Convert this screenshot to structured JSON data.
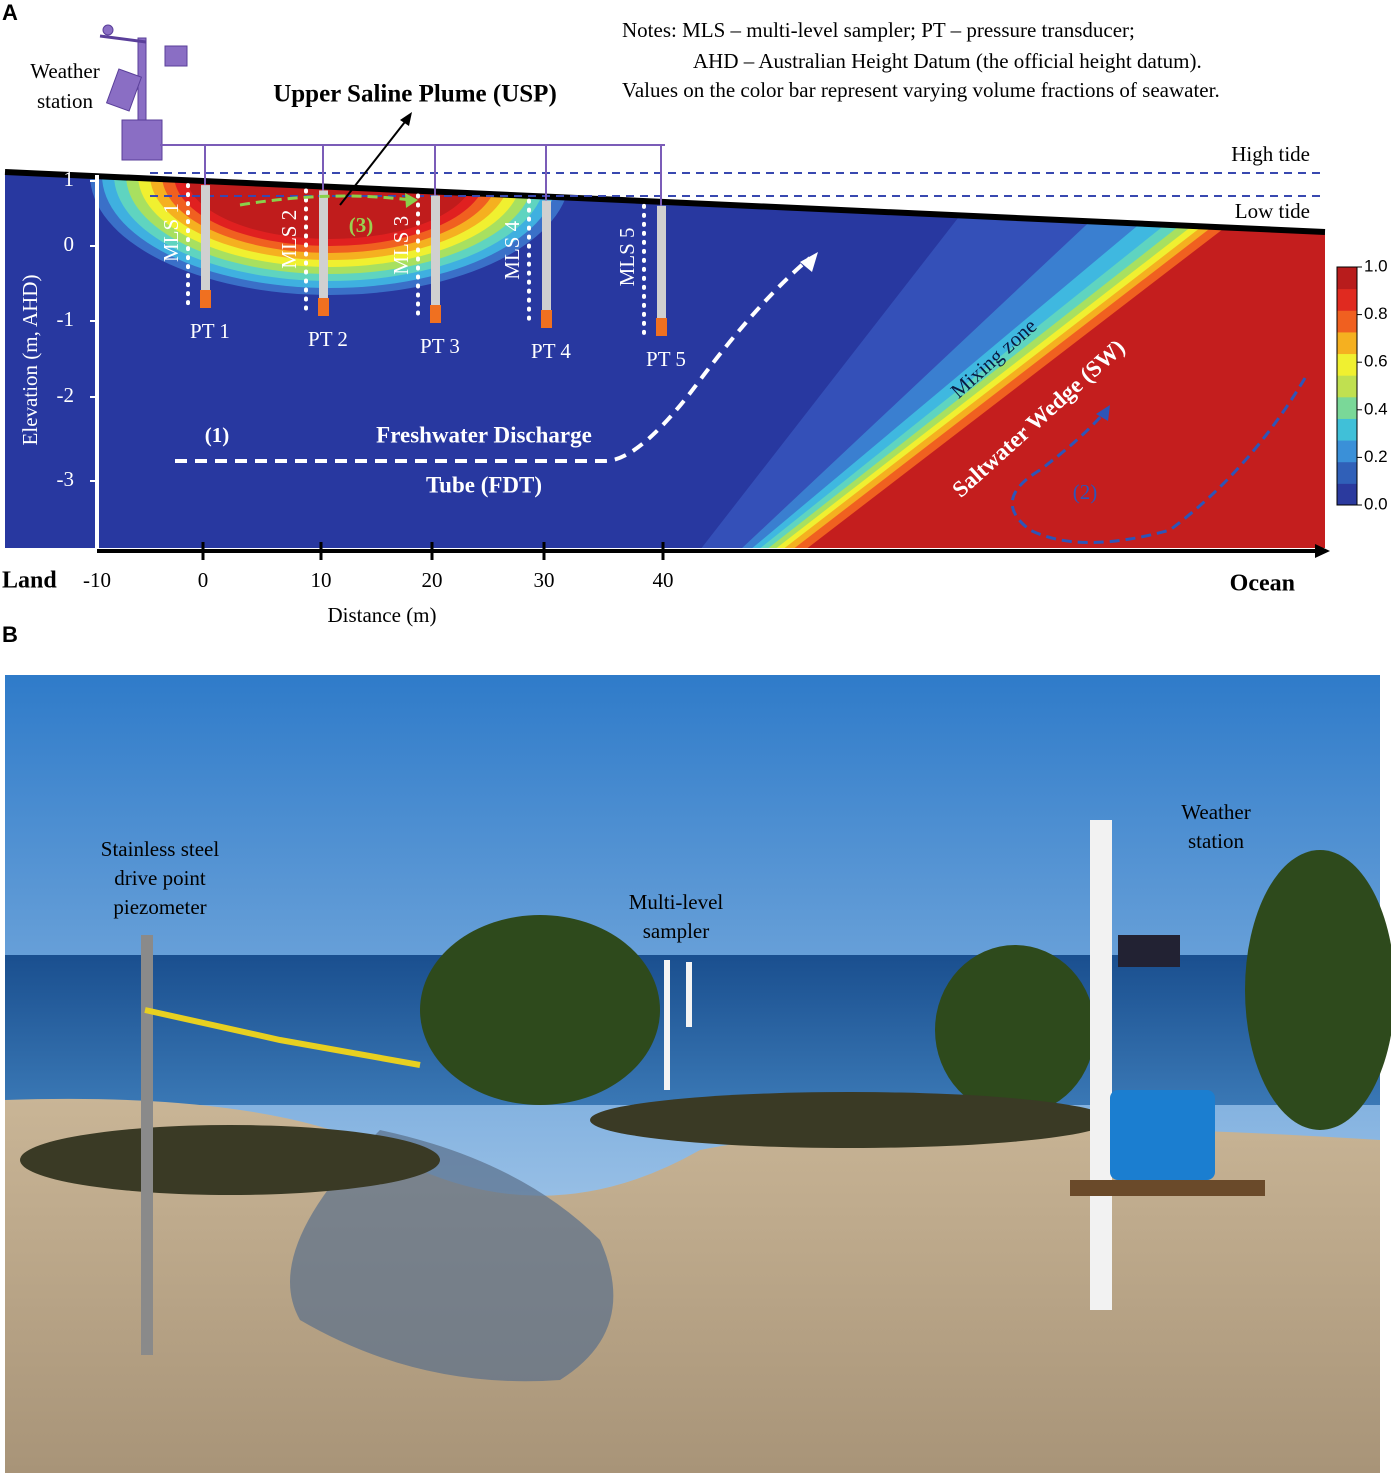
{
  "panel_a": {
    "label": "A",
    "notes": [
      "Notes: MLS – multi-level sampler; PT – pressure transducer;",
      "AHD – Australian Height Datum (the official height datum).",
      "Values on the color bar represent varying volume fractions of seawater."
    ],
    "weather_station": [
      "Weather",
      "station"
    ],
    "usp": "Upper Saline Plume (USP)",
    "high_tide": "High tide",
    "low_tide": "Low tide",
    "mls": [
      "MLS 1",
      "MLS 2",
      "MLS 3",
      "MLS 4",
      "MLS 5"
    ],
    "pt": [
      "PT 1",
      "PT 2",
      "PT 3",
      "PT 4",
      "PT 5"
    ],
    "label_1": "(1)",
    "label_2": "(2)",
    "label_3": "(3)",
    "fdt": [
      "Freshwater Discharge",
      "Tube (FDT)"
    ],
    "mixing_zone": "Mixing zone",
    "sw": "Saltwater Wedge (SW)",
    "y_axis_title": "Elevation (m, AHD)",
    "y_ticks": [
      "1",
      "0",
      "-1",
      "-2",
      "-3"
    ],
    "x_ticks": [
      "-10",
      "0",
      "10",
      "20",
      "30",
      "40"
    ],
    "x_axis_title": "Distance (m)",
    "land": "Land",
    "ocean": "Ocean",
    "colorbar_ticks": [
      "0.0",
      "0.2",
      "0.4",
      "0.6",
      "0.8",
      "1.0"
    ]
  },
  "panel_b": {
    "label": "B",
    "piezometer": [
      "Stainless steel",
      "drive point",
      "piezometer"
    ],
    "sampler": [
      "Multi-level",
      "sampler"
    ],
    "weather_station": [
      "Weather",
      "station"
    ]
  }
}
